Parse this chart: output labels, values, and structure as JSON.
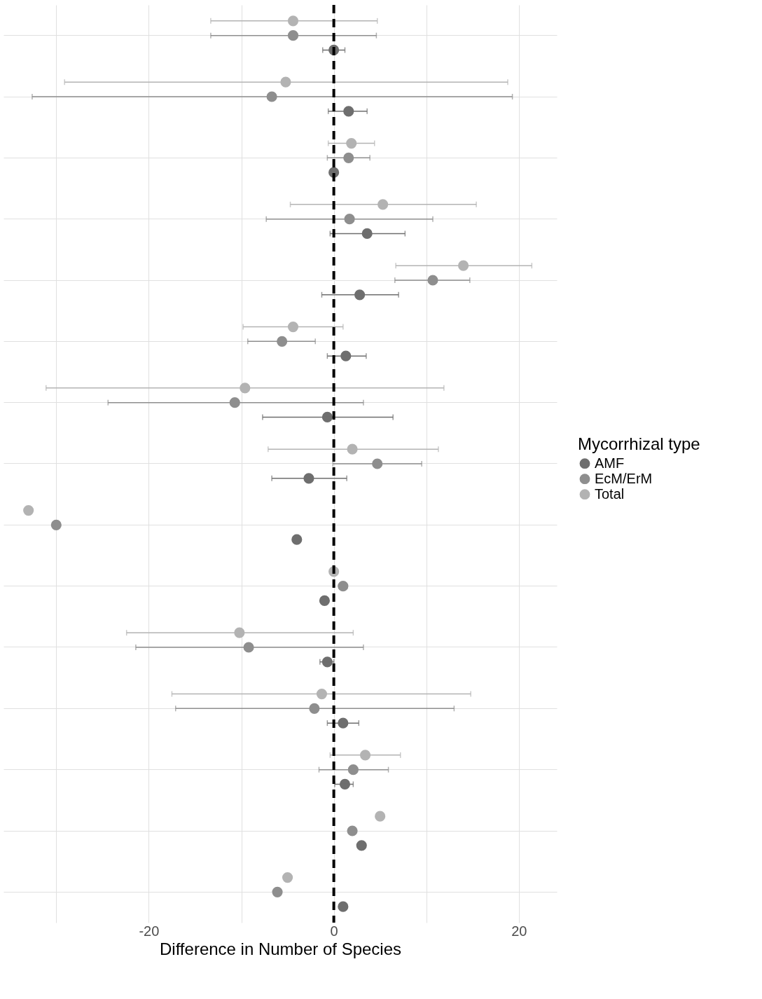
{
  "chart_data": {
    "type": "scatter",
    "orientation": "horizontal",
    "xlabel": "Difference in Number of Species",
    "legend_title": "Mycorrhizal type",
    "legend": "right",
    "grid": true,
    "marker": "circle",
    "categories": [
      null,
      null,
      null,
      null,
      null,
      null,
      null,
      null,
      null,
      null,
      null,
      null,
      null,
      null,
      null
    ],
    "xlim": [
      -35.7,
      24.1
    ],
    "xticks": [
      {
        "value": -30,
        "label": null
      },
      -20,
      {
        "value": -10,
        "label": null
      },
      0,
      {
        "value": 10,
        "label": null
      },
      20
    ],
    "ref_lines": [
      {
        "axis": "x",
        "value": 0,
        "color": "#000000",
        "line_style": "dashed"
      }
    ],
    "series": [
      {
        "name": "AMF",
        "color": "#6e6e6e",
        "values": [
          0,
          1.6,
          0,
          3.6,
          2.8,
          1.3,
          -0.7,
          -2.7,
          -4.0,
          -1.0,
          -0.7,
          1.0,
          1.2,
          3.0,
          1.0
        ],
        "errors": [
          [
            -1.2,
            1.2
          ],
          [
            -0.6,
            3.6
          ],
          null,
          [
            -0.4,
            7.7
          ],
          [
            -1.3,
            7.0
          ],
          [
            -0.7,
            3.5
          ],
          [
            -7.7,
            6.4
          ],
          [
            -6.7,
            1.4
          ],
          null,
          null,
          [
            -1.5,
            0
          ],
          [
            -0.7,
            2.7
          ],
          [
            0.1,
            2.1
          ],
          null,
          null
        ]
      },
      {
        "name": "EcM/ErM",
        "color": "#8e8e8e",
        "values": [
          -4.4,
          -6.7,
          1.6,
          1.7,
          10.7,
          -5.6,
          -10.7,
          4.7,
          -30.0,
          1.0,
          -9.2,
          -2.1,
          2.1,
          2.0,
          -6.1
        ],
        "errors": [
          [
            -13.3,
            4.6
          ],
          [
            -32.6,
            19.3
          ],
          [
            -0.7,
            3.9
          ],
          [
            -7.3,
            10.7
          ],
          [
            6.6,
            14.7
          ],
          [
            -9.3,
            -2.0
          ],
          [
            -24.4,
            3.2
          ],
          [
            -0.1,
            9.5
          ],
          null,
          null,
          [
            -21.4,
            3.2
          ],
          [
            -17.1,
            13.0
          ],
          [
            -1.6,
            5.9
          ],
          null,
          null
        ]
      },
      {
        "name": "Total",
        "color": "#b3b3b3",
        "values": [
          -4.4,
          -5.2,
          1.9,
          5.3,
          14.0,
          -4.4,
          -9.6,
          2.0,
          -33.0,
          0,
          -10.2,
          -1.3,
          3.4,
          5.0,
          -5.0
        ],
        "errors": [
          [
            -13.3,
            4.7
          ],
          [
            -29.1,
            18.8
          ],
          [
            -0.6,
            4.4
          ],
          [
            -4.7,
            15.4
          ],
          [
            6.7,
            21.4
          ],
          [
            -9.8,
            1.0
          ],
          [
            -31.1,
            11.9
          ],
          [
            -7.1,
            11.3
          ],
          null,
          null,
          [
            -22.4,
            2.1
          ],
          [
            -17.5,
            14.8
          ],
          [
            -0.4,
            7.2
          ],
          null,
          null
        ]
      }
    ]
  }
}
